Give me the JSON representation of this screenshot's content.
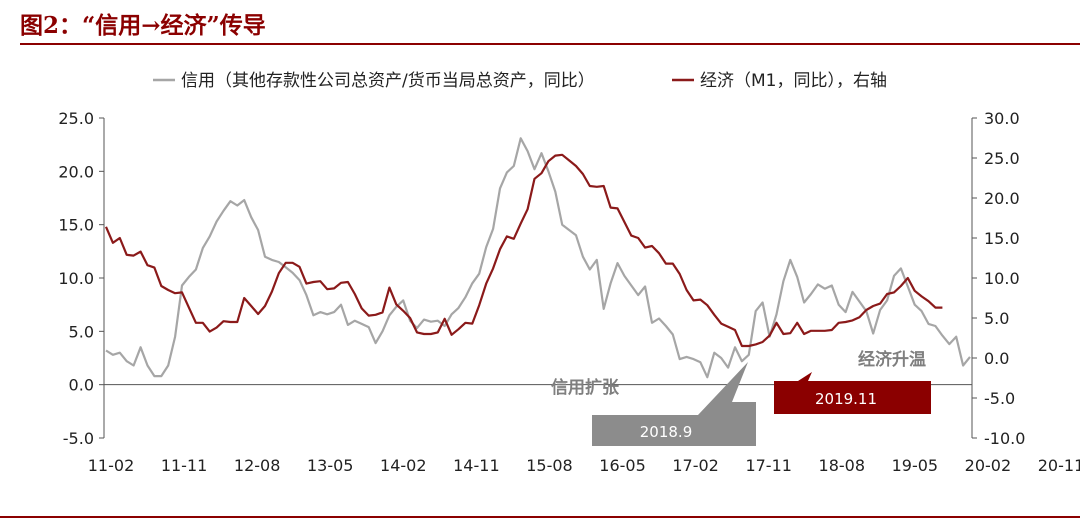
{
  "title": "图2：“信用→经济”传导",
  "colors": {
    "credit": "#a6a6a6",
    "economy": "#8b1a1a",
    "accent": "#8b0000",
    "box_gray": "#8c8c8c",
    "box_red": "#8b0000"
  },
  "chart_data": {
    "type": "line",
    "legend_placement": "top",
    "grid": false,
    "x_ticks": [
      "11-02",
      "11-11",
      "12-08",
      "13-05",
      "14-02",
      "14-11",
      "15-08",
      "16-05",
      "17-02",
      "17-11",
      "18-08",
      "19-05",
      "20-02",
      "20-11"
    ],
    "left_axis": {
      "ticks": [
        "25.0",
        "20.0",
        "15.0",
        "10.0",
        "5.0",
        "0.0",
        "-5.0"
      ],
      "ylim": [
        -5,
        25
      ]
    },
    "right_axis": {
      "ticks": [
        "30.0",
        "25.0",
        "20.0",
        "15.0",
        "10.0",
        "5.0",
        "0.0",
        "-5.0",
        "-10.0"
      ],
      "ylim": [
        -10,
        30
      ]
    },
    "series": [
      {
        "name": "信用（其他存款性公司总资产/货币当局总资产，同比）",
        "axis": "left",
        "values": [
          3.2,
          2.8,
          3.0,
          2.2,
          1.8,
          3.5,
          1.8,
          0.8,
          0.8,
          1.8,
          4.5,
          9.3,
          10.1,
          10.8,
          12.8,
          13.9,
          15.3,
          16.3,
          17.2,
          16.8,
          17.3,
          15.7,
          14.5,
          12.0,
          11.7,
          11.5,
          11.0,
          10.5,
          9.8,
          8.4,
          6.5,
          6.8,
          6.6,
          6.8,
          7.5,
          5.6,
          6.0,
          5.7,
          5.4,
          3.9,
          5.0,
          6.5,
          7.3,
          7.9,
          6.0,
          5.3,
          6.1,
          5.9,
          6.0,
          5.5,
          6.6,
          7.2,
          8.2,
          9.5,
          10.4,
          12.9,
          14.6,
          18.4,
          19.9,
          20.5,
          23.1,
          21.9,
          20.2,
          21.7,
          20.0,
          18.1,
          15.0,
          14.5,
          14.0,
          12.0,
          10.8,
          11.7,
          7.1,
          9.5,
          11.4,
          10.2,
          9.3,
          8.4,
          9.2,
          5.8,
          6.2,
          5.5,
          4.7,
          2.4,
          2.6,
          2.4,
          2.1,
          0.7,
          3.0,
          2.5,
          1.6,
          3.5,
          2.2,
          2.8,
          6.9,
          7.7,
          4.5,
          6.6,
          9.7,
          11.7,
          10.1,
          7.7,
          8.5,
          9.4,
          9.0,
          9.3,
          7.5,
          6.8,
          8.7,
          7.8,
          6.9,
          4.8,
          7.0,
          7.9,
          10.2,
          10.9,
          9.2,
          7.5,
          6.9,
          5.7,
          5.5,
          4.6,
          3.8,
          4.5,
          1.8,
          2.6
        ]
      },
      {
        "name": "经济（M1，同比），右轴",
        "axis": "right",
        "values": [
          16.4,
          14.4,
          15.0,
          12.9,
          12.8,
          13.3,
          11.6,
          11.3,
          9.0,
          8.5,
          8.1,
          8.2,
          6.3,
          4.4,
          4.4,
          3.3,
          3.8,
          4.6,
          4.5,
          4.5,
          7.5,
          6.5,
          5.5,
          6.5,
          8.3,
          10.6,
          11.9,
          11.9,
          11.4,
          9.3,
          9.5,
          9.6,
          8.6,
          8.7,
          9.4,
          9.5,
          8.0,
          6.2,
          5.3,
          5.4,
          5.7,
          8.8,
          6.7,
          5.9,
          5.0,
          3.2,
          3.0,
          3.0,
          3.2,
          4.9,
          2.9,
          3.6,
          4.4,
          4.3,
          6.6,
          9.3,
          11.2,
          13.6,
          15.2,
          14.9,
          16.8,
          18.6,
          22.4,
          23.1,
          24.6,
          25.3,
          25.4,
          24.7,
          24.0,
          23.0,
          21.5,
          21.4,
          21.5,
          18.8,
          18.7,
          17.0,
          15.3,
          15.0,
          13.8,
          14.0,
          13.1,
          11.8,
          11.8,
          10.5,
          8.5,
          7.2,
          7.3,
          6.6,
          5.4,
          4.3,
          3.9,
          3.5,
          1.5,
          1.5,
          1.7,
          2.0,
          2.8,
          4.4,
          3.0,
          3.1,
          4.4,
          3.0,
          3.4,
          3.4,
          3.4,
          3.5,
          4.4,
          4.5,
          4.7,
          5.1,
          6.0,
          6.5,
          6.8,
          8.0,
          8.2,
          9.0,
          10.0,
          8.4,
          7.7,
          7.1,
          6.3,
          6.3
        ]
      }
    ],
    "annotations": [
      {
        "text": "信用扩张",
        "series": "credit",
        "box": "2018.9"
      },
      {
        "text": "经济升温",
        "series": "economy",
        "box": "2019.11"
      }
    ]
  }
}
